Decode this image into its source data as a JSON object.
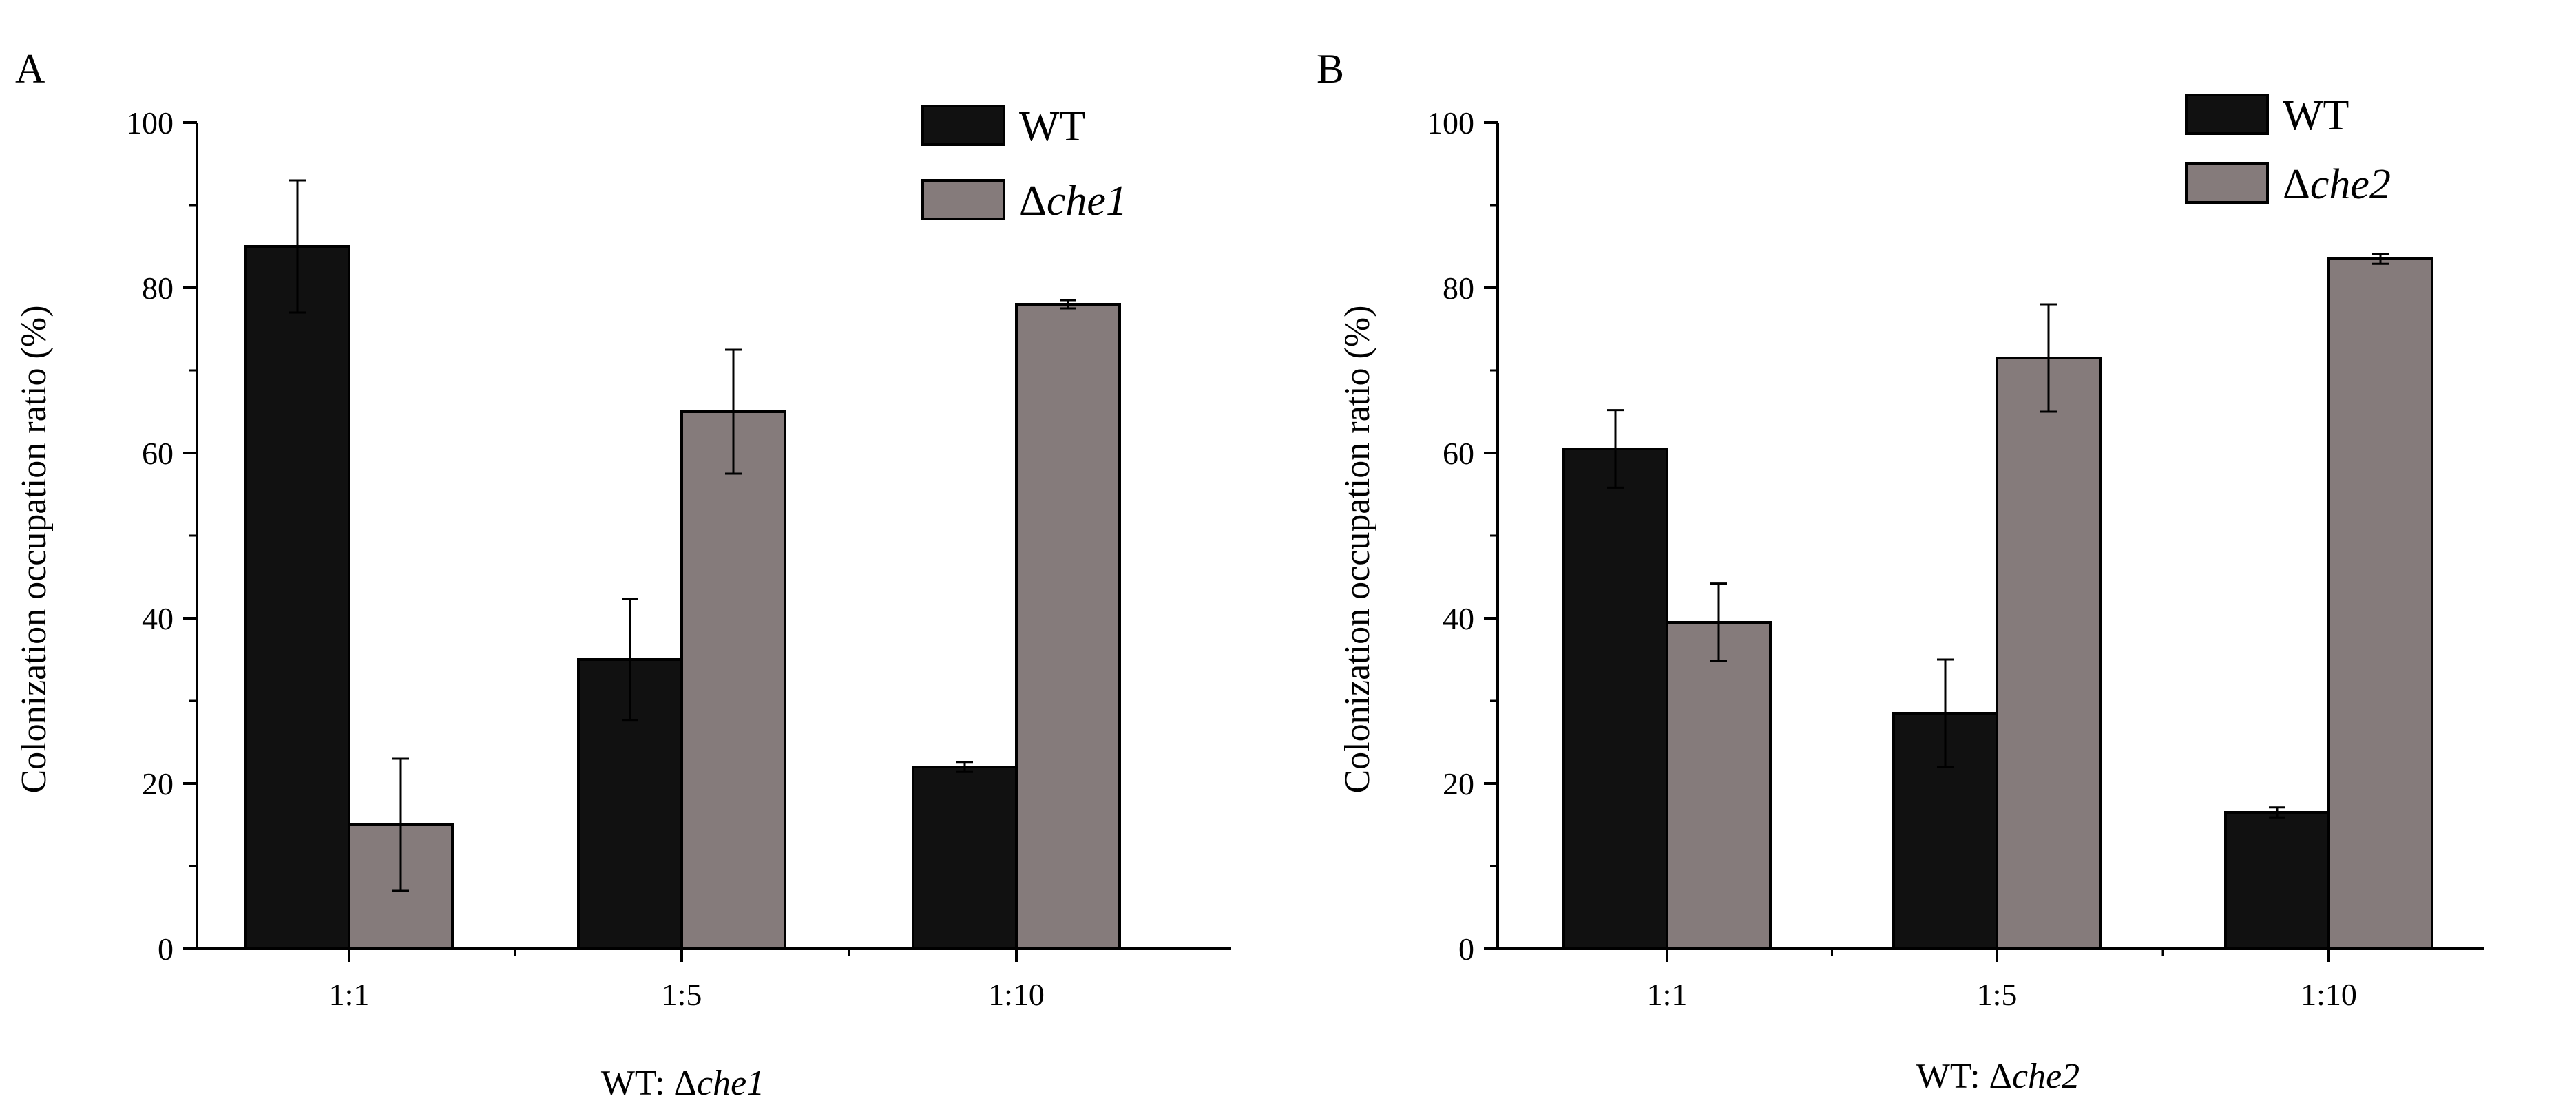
{
  "chart_data": [
    {
      "type": "bar",
      "panel_label": "A",
      "title": "",
      "xlabel_prefix": "WT: Δ",
      "xlabel_italic": "che1",
      "ylabel": "Colonization occupation ratio (%)",
      "ylim": [
        0,
        100
      ],
      "yticks": [
        0,
        20,
        40,
        60,
        80,
        100
      ],
      "ytick_labels": [
        "0",
        "20",
        "40",
        "60",
        "80",
        "100"
      ],
      "categories": [
        "1:1",
        "1:5",
        "1:10"
      ],
      "legend_position": "top-right",
      "series": [
        {
          "name": "WT",
          "name_prefix": "",
          "name_italic": "",
          "color": "#111111",
          "values": [
            85,
            35,
            22
          ],
          "errors": [
            8,
            7.3,
            0.6
          ]
        },
        {
          "name": "Δche1",
          "name_prefix": "Δ",
          "name_italic": "che1",
          "color": "#857b7b",
          "values": [
            15,
            65,
            78
          ],
          "errors": [
            8,
            7.5,
            0.5
          ]
        }
      ]
    },
    {
      "type": "bar",
      "panel_label": "B",
      "title": "",
      "xlabel_prefix": "WT: Δ",
      "xlabel_italic": "che2",
      "ylabel": "Colonization occupation ratio (%)",
      "ylim": [
        0,
        100
      ],
      "yticks": [
        0,
        20,
        40,
        60,
        80,
        100
      ],
      "ytick_labels": [
        "0",
        "20",
        "40",
        "60",
        "80",
        "100"
      ],
      "categories": [
        "1:1",
        "1:5",
        "1:10"
      ],
      "legend_position": "top-right",
      "series": [
        {
          "name": "WT",
          "name_prefix": "",
          "name_italic": "",
          "color": "#111111",
          "values": [
            60.5,
            28.5,
            16.5
          ],
          "errors": [
            4.7,
            6.5,
            0.6
          ]
        },
        {
          "name": "Δche2",
          "name_prefix": "Δ",
          "name_italic": "che2",
          "color": "#857b7b",
          "values": [
            39.5,
            71.5,
            83.5
          ],
          "errors": [
            4.7,
            6.5,
            0.6
          ]
        }
      ]
    }
  ]
}
